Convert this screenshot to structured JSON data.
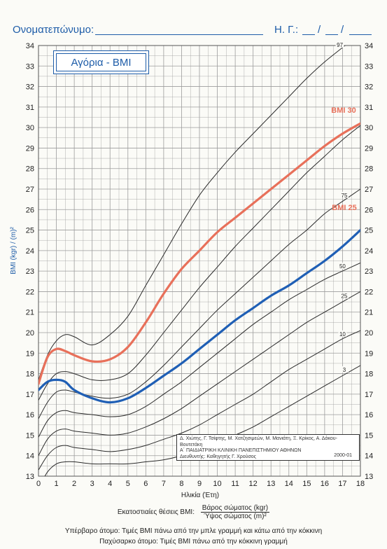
{
  "header": {
    "name_label": "Ονοματεπώνυμο:",
    "dob_label": "Η. Γ.:",
    "dob_separator": "/"
  },
  "title_box": "Αγόρια - BMI",
  "credits": {
    "authors": "Δ. Χιώτης, Γ. Τσίφτης, Μ. Χατζησιμεών, Μ. Μανιάτη, Ξ. Κρίκος, Α. Δάκου-Βουτετάκη",
    "clinic": "Α΄ ΠΑΙΔΙΑΤΡΙΚΗ ΚΛΙΝΙΚΗ ΠΑΝΕΠΙΣΤΗΜΙΟΥ ΑΘΗΝΩΝ",
    "director": "Διευθυντής: Καθηγητής Γ. Χρούσος",
    "date": "2000-01"
  },
  "footer": {
    "formula_label": "Εκατοστιαίες θέσεις BMI:",
    "numerator": "Βάρος σώματος (kgr)",
    "denominator": "Ύψος σώματος (m)²",
    "overweight": "Υπέρβαρο άτομο: Τιμές BMI πάνω από την μπλε γραμμή και κάτω από την κόκκινη",
    "obese": "Παχύσαρκο άτομο: Τιμές BMI πάνω από την κόκκινη γραμμή"
  },
  "chart_data": {
    "type": "line",
    "title": "Αγόρια - BMI",
    "xlabel": "Ηλικία (Έτη)",
    "ylabel": "BMI (kgr) / (m)²",
    "xlim": [
      0,
      18
    ],
    "ylim": [
      13,
      34
    ],
    "x_ticks": [
      0,
      1,
      2,
      3,
      4,
      5,
      6,
      7,
      8,
      9,
      10,
      11,
      12,
      13,
      14,
      15,
      16,
      17,
      18
    ],
    "y_ticks": [
      13,
      14,
      15,
      16,
      17,
      18,
      19,
      20,
      21,
      22,
      23,
      24,
      25,
      26,
      27,
      28,
      29,
      30,
      31,
      32,
      33,
      34
    ],
    "grid": true,
    "colors": {
      "percentile": "#2b2b2b",
      "bmi25": "#1f5fb5",
      "bmi30": "#e8705a",
      "grid": "#9c9c9c",
      "text": "#1d5ca8"
    },
    "percentiles": [
      {
        "name": "3",
        "x": [
          0,
          0.5,
          1,
          1.5,
          2,
          3,
          4,
          5,
          6,
          7,
          8,
          9,
          10,
          11,
          12,
          13,
          14,
          15,
          16,
          17,
          18
        ],
        "y": [
          12.4,
          13.2,
          13.6,
          13.7,
          13.7,
          13.6,
          13.6,
          13.6,
          13.7,
          13.8,
          14.0,
          14.3,
          14.6,
          15.0,
          15.4,
          15.9,
          16.4,
          16.9,
          17.4,
          17.9,
          18.4
        ]
      },
      {
        "name": "10",
        "x": [
          0,
          0.5,
          1,
          1.5,
          2,
          3,
          4,
          5,
          6,
          7,
          8,
          9,
          10,
          11,
          12,
          13,
          14,
          15,
          16,
          17,
          18
        ],
        "y": [
          13.3,
          14.0,
          14.4,
          14.5,
          14.4,
          14.3,
          14.2,
          14.3,
          14.5,
          14.8,
          15.1,
          15.5,
          16.0,
          16.5,
          17.0,
          17.6,
          18.2,
          18.7,
          19.2,
          19.7,
          20.1
        ]
      },
      {
        "name": "25",
        "x": [
          0,
          0.5,
          1,
          1.5,
          2,
          3,
          4,
          5,
          6,
          7,
          8,
          9,
          10,
          11,
          12,
          13,
          14,
          15,
          16,
          17,
          18
        ],
        "y": [
          14.0,
          14.8,
          15.2,
          15.3,
          15.2,
          15.1,
          15.0,
          15.1,
          15.4,
          15.8,
          16.3,
          16.9,
          17.5,
          18.1,
          18.7,
          19.3,
          19.9,
          20.5,
          21.0,
          21.5,
          22.0
        ]
      },
      {
        "name": "50",
        "x": [
          0,
          0.5,
          1,
          1.5,
          2,
          3,
          4,
          5,
          6,
          7,
          8,
          9,
          10,
          11,
          12,
          13,
          14,
          15,
          16,
          17,
          18
        ],
        "y": [
          14.9,
          15.7,
          16.1,
          16.2,
          16.1,
          16.0,
          15.9,
          16.0,
          16.4,
          17.0,
          17.6,
          18.3,
          19.0,
          19.7,
          20.4,
          21.0,
          21.6,
          22.1,
          22.6,
          23.0,
          23.4
        ]
      },
      {
        "name": "75",
        "x": [
          0,
          0.5,
          1,
          1.5,
          2,
          3,
          4,
          5,
          6,
          7,
          8,
          9,
          10,
          11,
          12,
          13,
          14,
          15,
          16,
          17,
          18
        ],
        "y": [
          15.8,
          16.6,
          17.1,
          17.2,
          17.1,
          16.9,
          16.8,
          17.0,
          17.6,
          18.4,
          19.3,
          20.2,
          21.1,
          21.9,
          22.7,
          23.5,
          24.3,
          25.0,
          25.8,
          26.4,
          27.0
        ]
      },
      {
        "name": "90",
        "x": [
          0,
          0.5,
          1,
          1.5,
          2,
          3,
          4,
          5,
          6,
          7,
          8,
          9,
          10,
          11,
          12,
          13,
          14,
          15,
          16,
          17,
          18
        ],
        "y": [
          16.7,
          17.5,
          18.0,
          18.1,
          18.0,
          17.7,
          17.7,
          18.0,
          18.9,
          20.0,
          21.1,
          22.2,
          23.2,
          24.2,
          25.1,
          26.0,
          26.9,
          27.8,
          28.6,
          29.4,
          30.1
        ]
      },
      {
        "name": "97",
        "x": [
          0,
          0.5,
          1,
          1.5,
          2,
          3,
          4,
          5,
          6,
          7,
          8,
          9,
          10,
          11,
          12,
          13,
          14,
          15,
          16,
          17,
          18
        ],
        "y": [
          17.7,
          18.9,
          19.6,
          19.9,
          19.8,
          19.4,
          19.9,
          20.8,
          22.3,
          23.8,
          25.3,
          26.7,
          27.8,
          28.8,
          29.7,
          30.6,
          31.5,
          32.4,
          33.2,
          33.9,
          34.6
        ]
      }
    ],
    "percentile_labels": [
      "97",
      "75",
      "50",
      "25",
      "10",
      "3"
    ],
    "cutoffs": [
      {
        "name": "BMI 25",
        "x": [
          0,
          0.5,
          1,
          1.5,
          2,
          3,
          4,
          5,
          6,
          7,
          8,
          9,
          10,
          11,
          12,
          13,
          14,
          15,
          16,
          17,
          18
        ],
        "y": [
          17.2,
          17.6,
          17.7,
          17.6,
          17.2,
          16.8,
          16.6,
          16.8,
          17.3,
          17.9,
          18.5,
          19.2,
          19.9,
          20.6,
          21.2,
          21.8,
          22.3,
          22.9,
          23.5,
          24.2,
          25.0
        ]
      },
      {
        "name": "BMI 30",
        "x": [
          0,
          0.5,
          1,
          1.5,
          2,
          3,
          4,
          5,
          6,
          7,
          8,
          9,
          10,
          11,
          12,
          13,
          14,
          15,
          16,
          17,
          18
        ],
        "y": [
          17.5,
          18.8,
          19.2,
          19.1,
          18.9,
          18.6,
          18.7,
          19.3,
          20.5,
          21.9,
          23.1,
          24.0,
          24.9,
          25.6,
          26.3,
          27.0,
          27.7,
          28.4,
          29.1,
          29.7,
          30.2
        ]
      }
    ]
  }
}
